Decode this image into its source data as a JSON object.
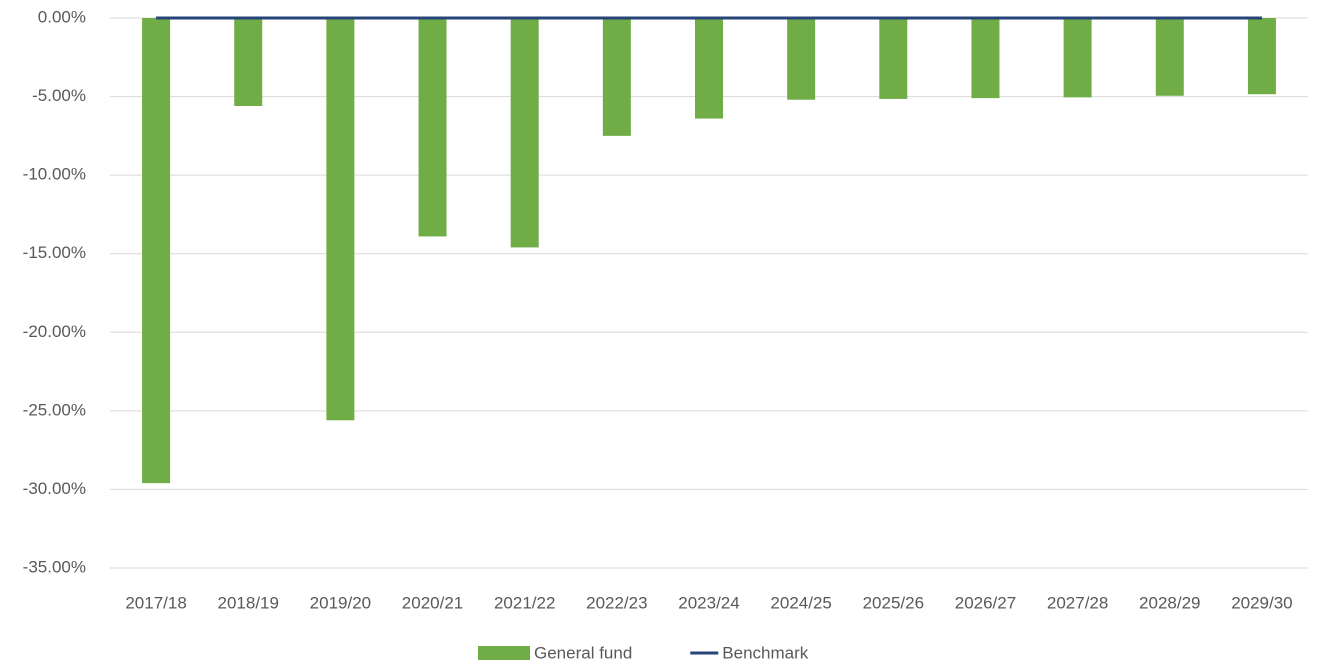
{
  "chart_data": {
    "type": "bar",
    "categories": [
      "2017/18",
      "2018/19",
      "2019/20",
      "2020/21",
      "2021/22",
      "2022/23",
      "2023/24",
      "2024/25",
      "2025/26",
      "2026/27",
      "2027/28",
      "2028/29",
      "2029/30"
    ],
    "series": [
      {
        "name": "General fund",
        "type": "bar",
        "color": "#70ad47",
        "values": [
          -29.6,
          -5.6,
          -25.6,
          -13.9,
          -14.6,
          -7.5,
          -6.4,
          -5.2,
          -5.15,
          -5.1,
          -5.05,
          -4.95,
          -4.85
        ]
      },
      {
        "name": "Benchmark",
        "type": "line",
        "color": "#264478",
        "values": [
          0,
          0,
          0,
          0,
          0,
          0,
          0,
          0,
          0,
          0,
          0,
          0,
          0
        ]
      }
    ],
    "ylim": [
      -35,
      0
    ],
    "yticks": [
      {
        "value": 0,
        "label": "0.00%"
      },
      {
        "value": -5,
        "label": "-5.00%"
      },
      {
        "value": -10,
        "label": "-10.00%"
      },
      {
        "value": -15,
        "label": "-15.00%"
      },
      {
        "value": -20,
        "label": "-20.00%"
      },
      {
        "value": -25,
        "label": "-25.00%"
      },
      {
        "value": -30,
        "label": "-30.00%"
      },
      {
        "value": -35,
        "label": "-35.00%"
      }
    ],
    "grid": true,
    "legend": "bottom"
  }
}
